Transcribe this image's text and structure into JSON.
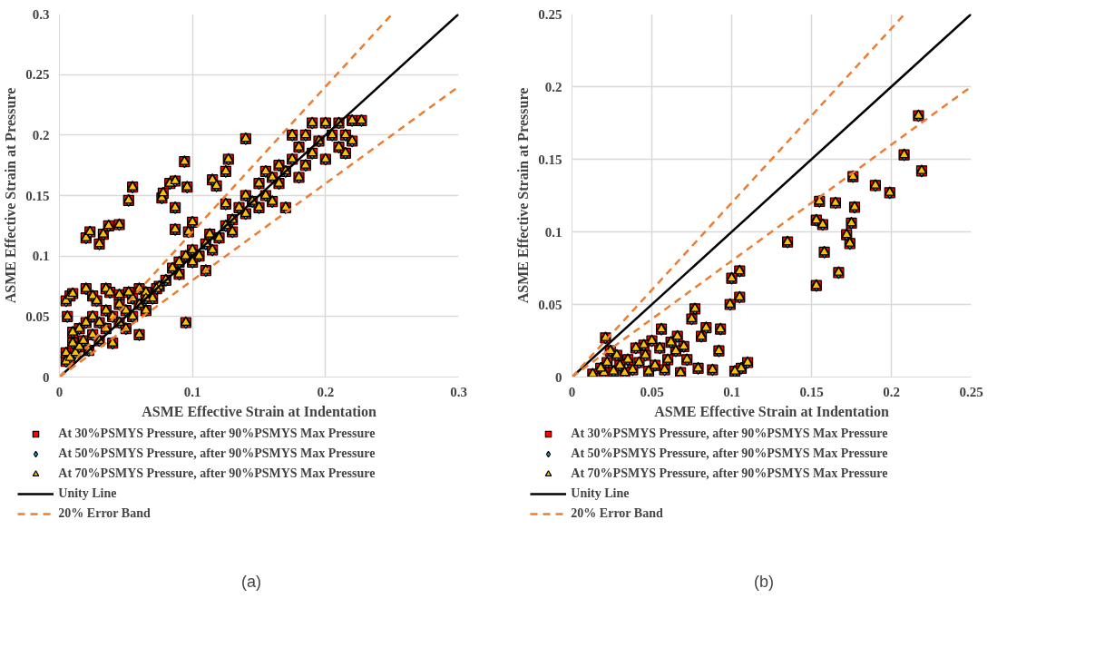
{
  "chart_data": [
    {
      "type": "scatter",
      "xlabel": "ASME Effective Strain at Indentation",
      "ylabel": "ASME Effective Strain at Pressure",
      "xlim": [
        0,
        0.3
      ],
      "ylim": [
        0,
        0.3
      ],
      "xticks": [
        0,
        0.1,
        0.2,
        0.3
      ],
      "yticks": [
        0,
        0.05,
        0.1,
        0.15,
        0.2,
        0.25,
        0.3
      ],
      "grid": true,
      "legend": "bottom",
      "annotations": [
        "(a)"
      ],
      "x": [
        0.005,
        0.005,
        0.008,
        0.01,
        0.01,
        0.012,
        0.015,
        0.015,
        0.018,
        0.02,
        0.022,
        0.025,
        0.025,
        0.03,
        0.03,
        0.035,
        0.035,
        0.04,
        0.04,
        0.045,
        0.045,
        0.05,
        0.05,
        0.055,
        0.055,
        0.06,
        0.06,
        0.065,
        0.065,
        0.07,
        0.075,
        0.08,
        0.085,
        0.09,
        0.09,
        0.095,
        0.1,
        0.1,
        0.105,
        0.11,
        0.115,
        0.12,
        0.125,
        0.13,
        0.13,
        0.135,
        0.14,
        0.14,
        0.145,
        0.15,
        0.15,
        0.155,
        0.155,
        0.16,
        0.16,
        0.165,
        0.165,
        0.17,
        0.17,
        0.175,
        0.175,
        0.18,
        0.18,
        0.185,
        0.185,
        0.19,
        0.19,
        0.195,
        0.2,
        0.2,
        0.205,
        0.21,
        0.21,
        0.215,
        0.215,
        0.22,
        0.22,
        0.02,
        0.023,
        0.03,
        0.033,
        0.037,
        0.045,
        0.052,
        0.055,
        0.077,
        0.078,
        0.083,
        0.087,
        0.087,
        0.094,
        0.096,
        0.095,
        0.087,
        0.097,
        0.1,
        0.11,
        0.113,
        0.115,
        0.118,
        0.125,
        0.127,
        0.125,
        0.14,
        0.005,
        0.008,
        0.01,
        0.006,
        0.02,
        0.025,
        0.028,
        0.035,
        0.038,
        0.045,
        0.052,
        0.06,
        0.065,
        0.073,
        0.227
      ],
      "series": [
        {
          "name": "At 30%PSMYS Pressure, after 90%PSMYS Max Pressure",
          "marker": "square",
          "color": "#ff0000",
          "values": [
            0.013,
            0.02,
            0.016,
            0.028,
            0.037,
            0.02,
            0.04,
            0.025,
            0.03,
            0.045,
            0.022,
            0.035,
            0.05,
            0.03,
            0.045,
            0.04,
            0.055,
            0.028,
            0.05,
            0.045,
            0.06,
            0.04,
            0.055,
            0.05,
            0.065,
            0.035,
            0.06,
            0.055,
            0.07,
            0.065,
            0.075,
            0.08,
            0.09,
            0.085,
            0.095,
            0.1,
            0.095,
            0.105,
            0.1,
            0.11,
            0.105,
            0.115,
            0.125,
            0.13,
            0.12,
            0.14,
            0.135,
            0.15,
            0.145,
            0.14,
            0.16,
            0.15,
            0.17,
            0.145,
            0.165,
            0.16,
            0.175,
            0.14,
            0.17,
            0.18,
            0.2,
            0.165,
            0.19,
            0.2,
            0.175,
            0.185,
            0.21,
            0.195,
            0.18,
            0.21,
            0.2,
            0.19,
            0.21,
            0.2,
            0.185,
            0.212,
            0.195,
            0.115,
            0.12,
            0.11,
            0.118,
            0.125,
            0.126,
            0.146,
            0.157,
            0.148,
            0.152,
            0.16,
            0.162,
            0.14,
            0.178,
            0.157,
            0.045,
            0.122,
            0.12,
            0.128,
            0.088,
            0.118,
            0.163,
            0.158,
            0.143,
            0.18,
            0.17,
            0.197,
            0.063,
            0.067,
            0.069,
            0.05,
            0.073,
            0.067,
            0.063,
            0.073,
            0.07,
            0.068,
            0.07,
            0.073,
            0.065,
            0.073,
            0.212
          ]
        },
        {
          "name": "At 50%PSMYS Pressure, after 90%PSMYS Max Pressure",
          "marker": "diamond",
          "color": "#1f9fd0",
          "values": [
            0.013,
            0.02,
            0.016,
            0.028,
            0.037,
            0.02,
            0.04,
            0.025,
            0.03,
            0.045,
            0.022,
            0.035,
            0.05,
            0.03,
            0.045,
            0.04,
            0.055,
            0.028,
            0.05,
            0.045,
            0.06,
            0.04,
            0.055,
            0.05,
            0.065,
            0.035,
            0.06,
            0.055,
            0.07,
            0.065,
            0.075,
            0.08,
            0.09,
            0.085,
            0.095,
            0.1,
            0.095,
            0.105,
            0.1,
            0.11,
            0.105,
            0.115,
            0.125,
            0.13,
            0.12,
            0.14,
            0.135,
            0.15,
            0.145,
            0.14,
            0.16,
            0.15,
            0.17,
            0.145,
            0.165,
            0.16,
            0.175,
            0.14,
            0.17,
            0.18,
            0.2,
            0.165,
            0.19,
            0.2,
            0.175,
            0.185,
            0.21,
            0.195,
            0.18,
            0.21,
            0.2,
            0.19,
            0.21,
            0.2,
            0.185,
            0.212,
            0.195,
            0.115,
            0.12,
            0.11,
            0.118,
            0.125,
            0.126,
            0.146,
            0.157,
            0.148,
            0.152,
            0.16,
            0.162,
            0.14,
            0.178,
            0.157,
            0.045,
            0.122,
            0.12,
            0.128,
            0.088,
            0.118,
            0.163,
            0.158,
            0.143,
            0.18,
            0.17,
            0.197,
            0.063,
            0.067,
            0.069,
            0.05,
            0.073,
            0.067,
            0.063,
            0.073,
            0.07,
            0.068,
            0.07,
            0.073,
            0.065,
            0.073,
            0.212
          ]
        },
        {
          "name": "At 70%PSMYS Pressure, after 90%PSMYS Max Pressure",
          "marker": "triangle",
          "color": "#ffc000",
          "values": [
            0.013,
            0.02,
            0.016,
            0.028,
            0.037,
            0.02,
            0.04,
            0.025,
            0.03,
            0.045,
            0.022,
            0.035,
            0.05,
            0.03,
            0.045,
            0.04,
            0.055,
            0.028,
            0.05,
            0.045,
            0.06,
            0.04,
            0.055,
            0.05,
            0.065,
            0.035,
            0.06,
            0.055,
            0.07,
            0.065,
            0.075,
            0.08,
            0.09,
            0.085,
            0.095,
            0.1,
            0.095,
            0.105,
            0.1,
            0.11,
            0.105,
            0.115,
            0.125,
            0.13,
            0.12,
            0.14,
            0.135,
            0.15,
            0.145,
            0.14,
            0.16,
            0.15,
            0.17,
            0.145,
            0.165,
            0.16,
            0.175,
            0.14,
            0.17,
            0.18,
            0.2,
            0.165,
            0.19,
            0.2,
            0.175,
            0.185,
            0.21,
            0.195,
            0.18,
            0.21,
            0.2,
            0.19,
            0.21,
            0.2,
            0.185,
            0.212,
            0.195,
            0.115,
            0.12,
            0.11,
            0.118,
            0.125,
            0.126,
            0.146,
            0.157,
            0.148,
            0.152,
            0.16,
            0.162,
            0.14,
            0.178,
            0.157,
            0.045,
            0.122,
            0.12,
            0.128,
            0.088,
            0.118,
            0.163,
            0.158,
            0.143,
            0.18,
            0.17,
            0.197,
            0.063,
            0.067,
            0.069,
            0.05,
            0.073,
            0.067,
            0.063,
            0.073,
            0.07,
            0.068,
            0.07,
            0.073,
            0.065,
            0.073,
            0.212
          ]
        },
        {
          "name": "Unity Line",
          "type": "line",
          "line_style": "solid",
          "color": "#000000",
          "x": [
            0,
            0.3
          ],
          "values": [
            0,
            0.3
          ]
        },
        {
          "name": "20% Error Band",
          "type": "line",
          "line_style": "dashed",
          "color": "#ed7d31",
          "x": [
            0,
            0.25,
            null,
            0,
            0.3
          ],
          "values": [
            0,
            0.3,
            null,
            0,
            0.24
          ]
        }
      ]
    },
    {
      "type": "scatter",
      "xlabel": "ASME Effective Strain at Indentation",
      "ylabel": "ASME Effective Strain at Pressure",
      "xlim": [
        0,
        0.25
      ],
      "ylim": [
        0,
        0.25
      ],
      "xticks": [
        0,
        0.05,
        0.1,
        0.15,
        0.2,
        0.25
      ],
      "yticks": [
        0,
        0.05,
        0.1,
        0.15,
        0.2,
        0.25
      ],
      "grid": true,
      "legend": "bottom",
      "annotations": [
        "(b)"
      ],
      "x": [
        0.217,
        0.219,
        0.208,
        0.199,
        0.19,
        0.176,
        0.177,
        0.175,
        0.172,
        0.174,
        0.165,
        0.167,
        0.158,
        0.155,
        0.153,
        0.157,
        0.153,
        0.135,
        0.105,
        0.1,
        0.105,
        0.099,
        0.093,
        0.092,
        0.084,
        0.081,
        0.079,
        0.077,
        0.075,
        0.07,
        0.072,
        0.066,
        0.065,
        0.062,
        0.06,
        0.056,
        0.055,
        0.052,
        0.05,
        0.048,
        0.046,
        0.045,
        0.042,
        0.04,
        0.038,
        0.035,
        0.033,
        0.03,
        0.028,
        0.026,
        0.024,
        0.022,
        0.021,
        0.02,
        0.018,
        0.013,
        0.11,
        0.106,
        0.102,
        0.068,
        0.058,
        0.088
      ],
      "series": [
        {
          "name": "At 30%PSMYS Pressure, after 90%PSMYS Max Pressure",
          "marker": "square",
          "color": "#ff0000",
          "values": [
            0.18,
            0.142,
            0.153,
            0.127,
            0.132,
            0.138,
            0.117,
            0.106,
            0.098,
            0.092,
            0.12,
            0.072,
            0.086,
            0.121,
            0.108,
            0.105,
            0.063,
            0.093,
            0.073,
            0.068,
            0.055,
            0.05,
            0.033,
            0.018,
            0.034,
            0.028,
            0.006,
            0.047,
            0.04,
            0.021,
            0.012,
            0.028,
            0.018,
            0.024,
            0.012,
            0.033,
            0.02,
            0.008,
            0.025,
            0.004,
            0.015,
            0.022,
            0.01,
            0.02,
            0.005,
            0.012,
            0.003,
            0.008,
            0.015,
            0.004,
            0.018,
            0.01,
            0.027,
            0.003,
            0.006,
            0.002,
            0.01,
            0.006,
            0.004,
            0.003,
            0.005,
            0.005
          ]
        },
        {
          "name": "At 50%PSMYS Pressure, after 90%PSMYS Max Pressure",
          "marker": "diamond",
          "color": "#1f9fd0",
          "values": [
            0.18,
            0.142,
            0.153,
            0.127,
            0.132,
            0.138,
            0.117,
            0.106,
            0.098,
            0.092,
            0.12,
            0.072,
            0.086,
            0.121,
            0.108,
            0.105,
            0.063,
            0.093,
            0.073,
            0.068,
            0.055,
            0.05,
            0.033,
            0.018,
            0.034,
            0.028,
            0.006,
            0.047,
            0.04,
            0.021,
            0.012,
            0.028,
            0.018,
            0.024,
            0.012,
            0.033,
            0.02,
            0.008,
            0.025,
            0.004,
            0.015,
            0.022,
            0.01,
            0.02,
            0.005,
            0.012,
            0.003,
            0.008,
            0.015,
            0.004,
            0.018,
            0.01,
            0.027,
            0.003,
            0.006,
            0.002,
            0.01,
            0.006,
            0.004,
            0.003,
            0.005,
            0.005
          ]
        },
        {
          "name": "At 70%PSMYS Pressure, after 90%PSMYS Max Pressure",
          "marker": "triangle",
          "color": "#ffc000",
          "values": [
            0.18,
            0.142,
            0.153,
            0.127,
            0.132,
            0.138,
            0.117,
            0.106,
            0.098,
            0.092,
            0.12,
            0.072,
            0.086,
            0.121,
            0.108,
            0.105,
            0.063,
            0.093,
            0.073,
            0.068,
            0.055,
            0.05,
            0.033,
            0.018,
            0.034,
            0.028,
            0.006,
            0.047,
            0.04,
            0.021,
            0.012,
            0.028,
            0.018,
            0.024,
            0.012,
            0.033,
            0.02,
            0.008,
            0.025,
            0.004,
            0.015,
            0.022,
            0.01,
            0.02,
            0.005,
            0.012,
            0.003,
            0.008,
            0.015,
            0.004,
            0.018,
            0.01,
            0.027,
            0.003,
            0.006,
            0.002,
            0.01,
            0.006,
            0.004,
            0.003,
            0.005,
            0.005
          ]
        },
        {
          "name": "Unity Line",
          "type": "line",
          "line_style": "solid",
          "color": "#000000",
          "x": [
            0,
            0.25
          ],
          "values": [
            0,
            0.25
          ]
        },
        {
          "name": "20% Error Band",
          "type": "line",
          "line_style": "dashed",
          "color": "#ed7d31",
          "x": [
            0,
            0.2083,
            null,
            0,
            0.25
          ],
          "values": [
            0,
            0.25,
            null,
            0,
            0.2
          ]
        }
      ]
    }
  ]
}
